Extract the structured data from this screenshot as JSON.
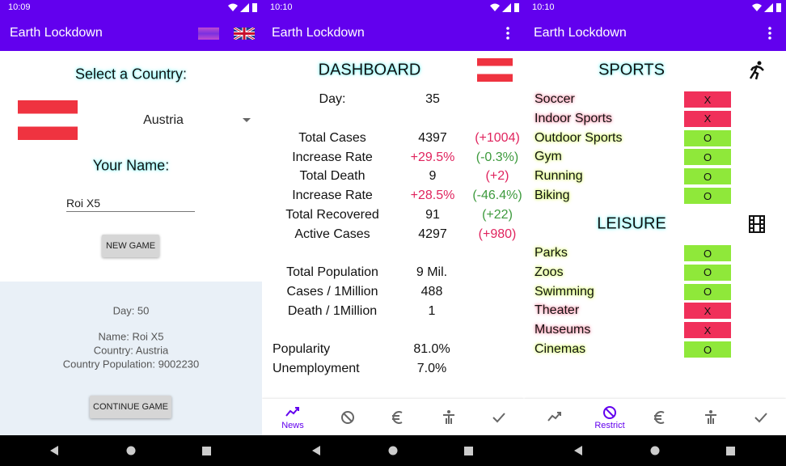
{
  "screens": [
    {
      "status_time": "10:09",
      "app_title": "Earth Lockdown",
      "select_country_label": "Select a Country:",
      "country": "Austria",
      "name_label": "Your Name:",
      "name_input": "Roi X5",
      "new_game_button": "NEW GAME",
      "saved_game": [
        "Day: 50",
        "Name: Roi X5",
        "Country: Austria",
        "Country Population: 9002230"
      ],
      "continue_button": "CONTINUE GAME"
    },
    {
      "status_time": "10:10",
      "app_title": "Earth Lockdown",
      "heading": "DASHBOARD",
      "day": {
        "label": "Day:",
        "value": "35"
      },
      "stats": [
        {
          "label": "Total Cases",
          "value": "4397",
          "change": "(+1004)"
        },
        {
          "label": "Increase Rate",
          "value": "+29.5%",
          "change": "(-0.3%)"
        },
        {
          "label": "Total Death",
          "value": "9",
          "change": "(+2)"
        },
        {
          "label": "Increase Rate",
          "value": "+28.5%",
          "change": "(-46.4%)"
        },
        {
          "label": "Total Recovered",
          "value": "91",
          "change": "(+22)"
        },
        {
          "label": "Active Cases",
          "value": "4297",
          "change": "(+980)"
        }
      ],
      "population": [
        {
          "label": "Total Population",
          "value": "9 Mil."
        },
        {
          "label": "Cases / 1Million",
          "value": "488"
        },
        {
          "label": "Death / 1Million",
          "value": "1"
        }
      ],
      "economy": [
        {
          "label": "Popularity",
          "value": "81.0%"
        },
        {
          "label": "Unemployment",
          "value": "7.0%"
        }
      ],
      "nav_label": "News"
    },
    {
      "status_time": "10:10",
      "app_title": "Earth Lockdown",
      "sections": [
        {
          "heading": "SPORTS",
          "items": [
            {
              "name": "Soccer",
              "status": "X"
            },
            {
              "name": "Indoor Sports",
              "status": "X"
            },
            {
              "name": "Outdoor Sports",
              "status": "O"
            },
            {
              "name": "Gym",
              "status": "O"
            },
            {
              "name": "Running",
              "status": "O"
            },
            {
              "name": "Biking",
              "status": "O"
            }
          ]
        },
        {
          "heading": "LEISURE",
          "items": [
            {
              "name": "Parks",
              "status": "O"
            },
            {
              "name": "Zoos",
              "status": "O"
            },
            {
              "name": "Swimming",
              "status": "O"
            },
            {
              "name": "Theater",
              "status": "X"
            },
            {
              "name": "Museums",
              "status": "X"
            },
            {
              "name": "Cinemas",
              "status": "O"
            }
          ]
        }
      ],
      "nav_label": "Restrict"
    }
  ]
}
